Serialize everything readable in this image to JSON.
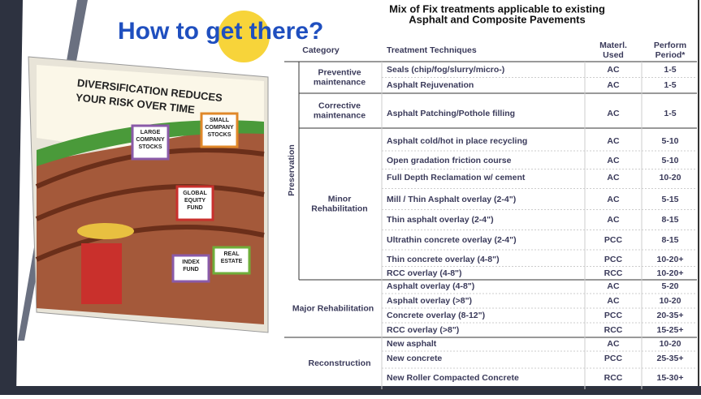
{
  "title": "How to get there?",
  "illustration": {
    "heading": [
      "DIVERSIFICATION REDUCES",
      "YOUR RISK OVER TIME"
    ],
    "signs": [
      [
        "LARGE",
        "COMPANY",
        "STOCKS"
      ],
      [
        "SMALL",
        "COMPANY",
        "STOCKS"
      ],
      [
        "GLOBAL",
        "EQUITY",
        "FUND"
      ],
      [
        "INDEX",
        "FUND"
      ],
      [
        "REAL",
        "ESTATE"
      ]
    ]
  },
  "table": {
    "title": [
      "Mix of Fix treatments applicable to existing",
      "Asphalt and Composite Pavements"
    ],
    "headers": [
      [
        "Category"
      ],
      [
        "Treatment Techniques"
      ],
      [
        "Materl.",
        "Used"
      ],
      [
        "Perform",
        "Period*"
      ]
    ],
    "group_label": "Preservation",
    "categories": [
      {
        "name": [
          "Preventive",
          "maintenance"
        ],
        "rows": [
          [
            "Seals (chip/fog/slurry/micro-)",
            "AC",
            "1-5"
          ],
          [
            "Asphalt Rejuvenation",
            "AC",
            "1-5"
          ]
        ]
      },
      {
        "name": [
          "Corrective",
          "maintenance"
        ],
        "rows": [
          [
            "Asphalt Patching/Pothole filling",
            "AC",
            "1-5"
          ]
        ]
      },
      {
        "name": [
          "Minor",
          "Rehabilitation"
        ],
        "rows": [
          [
            "Asphalt cold/hot in place recycling",
            "AC",
            "5-10"
          ],
          [
            "Open gradation friction course",
            "AC",
            "5-10"
          ],
          [
            "Full Depth Reclamation w/ cement",
            "AC",
            "10-20"
          ],
          [
            "Mill / Thin Asphalt overlay (2-4\")",
            "AC",
            "5-15"
          ],
          [
            "Thin asphalt overlay (2-4\")",
            "AC",
            "8-15"
          ],
          [
            "Ultrathin concrete overlay (2-4\")",
            "PCC",
            "8-15"
          ],
          [
            "Thin concrete overlay (4-8\")",
            "PCC",
            "10-20+"
          ],
          [
            "RCC overlay (4-8\")",
            "RCC",
            "10-20+"
          ]
        ]
      },
      {
        "name": [
          "Major Rehabilitation"
        ],
        "rows": [
          [
            "Asphalt overlay (4-8\")",
            "AC",
            "5-20"
          ],
          [
            "Asphalt overlay (>8\")",
            "AC",
            "10-20"
          ],
          [
            "Concrete overlay (8-12\")",
            "PCC",
            "20-35+"
          ],
          [
            "RCC overlay (>8\")",
            "RCC",
            "15-25+"
          ]
        ]
      },
      {
        "name": [
          "Reconstruction"
        ],
        "rows": [
          [
            "New asphalt",
            "AC",
            "10-20"
          ],
          [
            "New concrete",
            "PCC",
            "25-35+"
          ],
          [
            "New Roller Compacted Concrete",
            "RCC",
            "15-30+"
          ]
        ]
      }
    ]
  }
}
